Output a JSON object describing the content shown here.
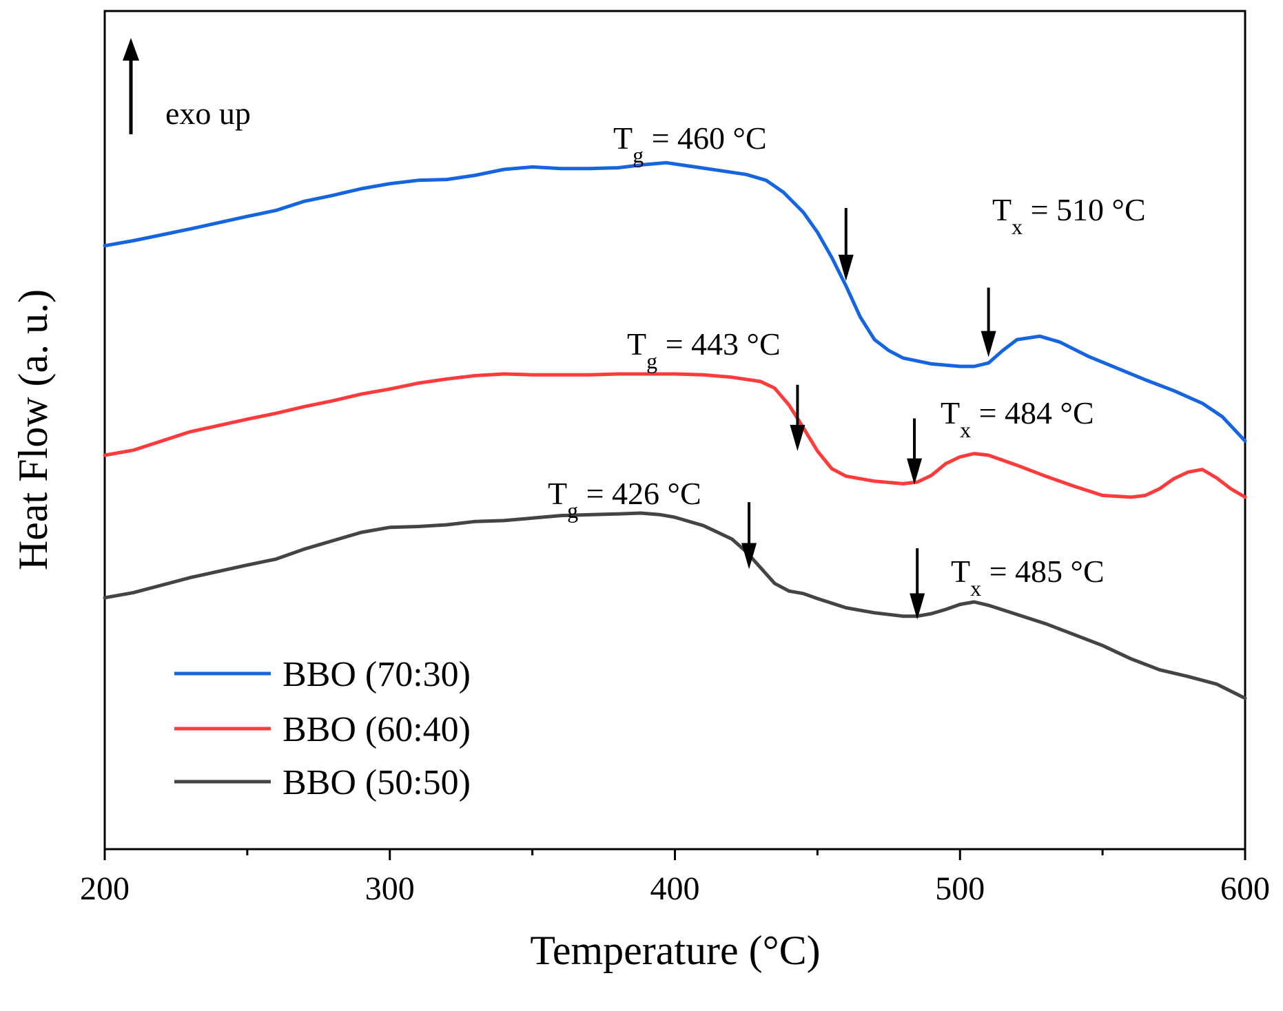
{
  "chart_data": {
    "type": "line",
    "title": "",
    "xlabel": "Temperature (°C)",
    "ylabel": "Heat Flow (a. u.)",
    "xlim": [
      200,
      600
    ],
    "ylim": [
      0,
      100
    ],
    "xticks": [
      200,
      300,
      400,
      500,
      600
    ],
    "xminor": [
      250,
      350,
      450,
      550
    ],
    "grid": false,
    "legend_position": "bottom-left",
    "exo_label": "exo up",
    "series": [
      {
        "name": "BBO (70:30)",
        "color": "#1565e0",
        "x": [
          200,
          210,
          230,
          250,
          260,
          270,
          280,
          290,
          300,
          310,
          320,
          330,
          340,
          350,
          360,
          370,
          380,
          390,
          397,
          405,
          415,
          425,
          432,
          438,
          445,
          450,
          455,
          460,
          465,
          470,
          475,
          480,
          490,
          500,
          505,
          510,
          515,
          520,
          528,
          535,
          545,
          555,
          565,
          575,
          585,
          592,
          600
        ],
        "y": [
          72.0,
          72.6,
          74.0,
          75.5,
          76.2,
          77.3,
          78.0,
          78.8,
          79.4,
          79.8,
          79.9,
          80.4,
          81.1,
          81.4,
          81.2,
          81.2,
          81.3,
          81.7,
          81.9,
          81.5,
          81.0,
          80.5,
          79.8,
          78.4,
          76.0,
          73.6,
          70.6,
          67.2,
          63.5,
          60.8,
          59.5,
          58.6,
          57.9,
          57.6,
          57.6,
          58.0,
          59.5,
          60.8,
          61.2,
          60.5,
          58.8,
          57.4,
          56.0,
          54.7,
          53.2,
          51.6,
          48.7
        ]
      },
      {
        "name": "BBO (60:40)",
        "color": "#ff3b3b",
        "x": [
          200,
          210,
          230,
          250,
          260,
          270,
          280,
          290,
          300,
          310,
          320,
          330,
          340,
          350,
          360,
          370,
          380,
          390,
          400,
          410,
          420,
          430,
          435,
          440,
          445,
          450,
          455,
          460,
          470,
          480,
          485,
          490,
          495,
          500,
          505,
          510,
          520,
          530,
          540,
          550,
          560,
          565,
          570,
          575,
          580,
          585,
          590,
          595,
          600
        ],
        "y": [
          47.0,
          47.6,
          49.8,
          51.3,
          52.0,
          52.8,
          53.5,
          54.3,
          54.9,
          55.6,
          56.1,
          56.5,
          56.7,
          56.6,
          56.6,
          56.6,
          56.7,
          56.7,
          56.7,
          56.6,
          56.3,
          55.8,
          55.0,
          53.0,
          50.3,
          47.5,
          45.4,
          44.5,
          43.9,
          43.6,
          43.8,
          44.6,
          46.0,
          46.8,
          47.2,
          47.0,
          45.8,
          44.5,
          43.3,
          42.2,
          42.0,
          42.2,
          43.0,
          44.2,
          45.0,
          45.3,
          44.3,
          43.0,
          42.0
        ]
      },
      {
        "name": "BBO (50:50)",
        "color": "#444444",
        "x": [
          200,
          210,
          230,
          250,
          260,
          270,
          280,
          290,
          300,
          310,
          320,
          330,
          340,
          350,
          360,
          370,
          380,
          388,
          395,
          400,
          410,
          420,
          425,
          430,
          435,
          440,
          445,
          450,
          460,
          470,
          480,
          485,
          490,
          495,
          500,
          505,
          510,
          520,
          530,
          540,
          550,
          560,
          570,
          580,
          590,
          600
        ],
        "y": [
          30.0,
          30.6,
          32.4,
          33.9,
          34.6,
          35.8,
          36.8,
          37.8,
          38.4,
          38.5,
          38.7,
          39.1,
          39.2,
          39.5,
          39.8,
          39.9,
          40.0,
          40.1,
          39.9,
          39.6,
          38.6,
          37.0,
          35.5,
          33.6,
          31.7,
          30.8,
          30.5,
          29.9,
          28.8,
          28.2,
          27.8,
          27.8,
          28.1,
          28.6,
          29.2,
          29.5,
          29.1,
          28.0,
          26.9,
          25.6,
          24.3,
          22.7,
          21.4,
          20.6,
          19.7,
          18.0
        ]
      }
    ],
    "annotations": [
      {
        "series": "BBO (70:30)",
        "kind": "T",
        "sub": "g",
        "text": " = 460 °C",
        "x": 460,
        "arrow_y_top": 76.5,
        "arrow_y_bottom": 67.8
      },
      {
        "series": "BBO (70:30)",
        "kind": "T",
        "sub": "x",
        "text": " = 510 °C",
        "x": 510,
        "arrow_y_top": 67.0,
        "arrow_y_bottom": 58.7
      },
      {
        "series": "BBO (60:40)",
        "kind": "T",
        "sub": "g",
        "text": " = 443 °C",
        "x": 443,
        "arrow_y_top": 55.4,
        "arrow_y_bottom": 47.5
      },
      {
        "series": "BBO (60:40)",
        "kind": "T",
        "sub": "x",
        "text": " = 484 °C",
        "x": 484,
        "arrow_y_top": 51.4,
        "arrow_y_bottom": 43.5
      },
      {
        "series": "BBO (50:50)",
        "kind": "T",
        "sub": "g",
        "text": " = 426 °C",
        "x": 426,
        "arrow_y_top": 41.4,
        "arrow_y_bottom": 33.4
      },
      {
        "series": "BBO (50:50)",
        "kind": "T",
        "sub": "x",
        "text": " = 485 °C",
        "x": 485,
        "arrow_y_top": 35.9,
        "arrow_y_bottom": 27.4
      }
    ]
  }
}
